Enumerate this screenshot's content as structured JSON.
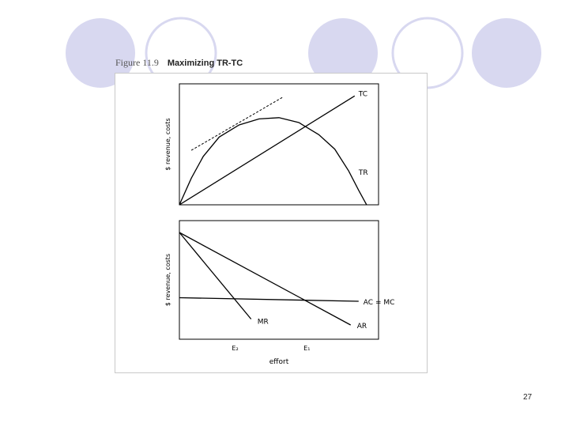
{
  "slide": {
    "figure_number": "Figure 11.9",
    "figure_title": "Maximizing TR-TC",
    "page_number": "27",
    "accent_color": "#d8d8f0"
  },
  "chart_data": [
    {
      "type": "line",
      "ylabel": "$ revenue, costs",
      "xlim": [
        0,
        10
      ],
      "ylim": [
        0,
        10
      ],
      "series": [
        {
          "name": "TC",
          "points": [
            [
              0,
              0
            ],
            [
              8.8,
              9.0
            ]
          ]
        },
        {
          "name": "TR",
          "points": [
            [
              0,
              0
            ],
            [
              0.6,
              2.2
            ],
            [
              1.2,
              4.0
            ],
            [
              2.0,
              5.6
            ],
            [
              3.0,
              6.6
            ],
            [
              4.0,
              7.1
            ],
            [
              5.0,
              7.2
            ],
            [
              6.0,
              6.8
            ],
            [
              7.0,
              5.8
            ],
            [
              7.8,
              4.6
            ],
            [
              8.5,
              2.8
            ],
            [
              9.0,
              1.2
            ],
            [
              9.4,
              0
            ]
          ]
        },
        {
          "name": "",
          "style": "dashed",
          "points": [
            [
              0.6,
              4.5
            ],
            [
              5.2,
              8.9
            ]
          ]
        }
      ]
    },
    {
      "type": "line",
      "ylabel": "$ revenue, costs",
      "xlabel": "effort",
      "xlim": [
        0,
        10
      ],
      "ylim": [
        0,
        10
      ],
      "x_ticks": [
        {
          "label": "E₂",
          "x": 2.8
        },
        {
          "label": "E₁",
          "x": 6.4
        }
      ],
      "series": [
        {
          "name": "AC = MC",
          "points": [
            [
              0,
              3.5
            ],
            [
              9.0,
              3.2
            ]
          ]
        },
        {
          "name": "AR",
          "points": [
            [
              0,
              9.0
            ],
            [
              8.6,
              1.2
            ]
          ]
        },
        {
          "name": "MR",
          "points": [
            [
              0,
              9.0
            ],
            [
              3.6,
              1.7
            ]
          ]
        }
      ]
    }
  ]
}
